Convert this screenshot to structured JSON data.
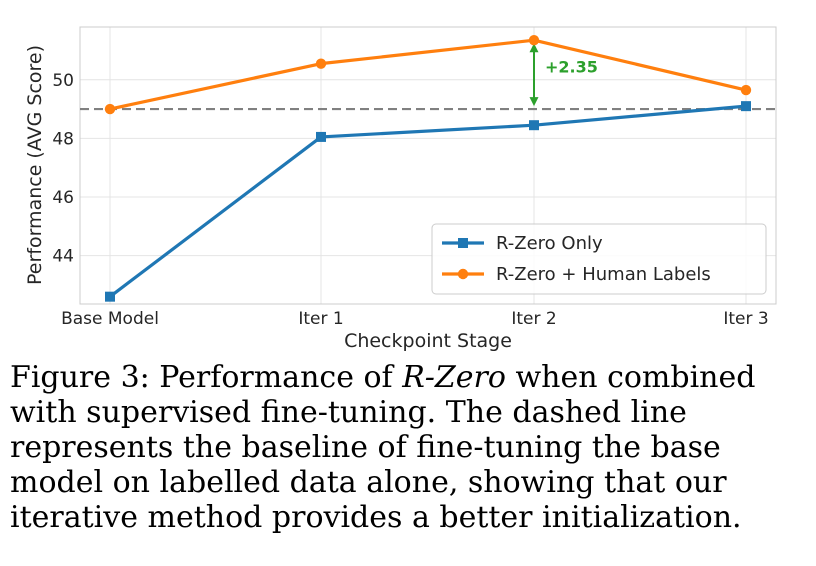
{
  "chart_data": {
    "type": "line",
    "categories": [
      "Base Model",
      "Iter 1",
      "Iter 2",
      "Iter 3"
    ],
    "series": [
      {
        "name": "R-Zero Only",
        "values": [
          42.6,
          48.05,
          48.45,
          49.1
        ],
        "color": "#1f77b4",
        "marker": "square"
      },
      {
        "name": "R-Zero + Human Labels",
        "values": [
          49.0,
          50.55,
          51.35,
          49.65
        ],
        "color": "#ff7f0e",
        "marker": "circle"
      }
    ],
    "baseline": {
      "value": 49.0,
      "style": "dashed",
      "color": "#808080"
    },
    "annotation": {
      "text": "+2.35",
      "category": "Iter 2",
      "from": 49.0,
      "to": 51.35,
      "color": "#2ca02c"
    },
    "xlabel": "Checkpoint Stage",
    "ylabel": "Performance (AVG Score)",
    "yticks": [
      44,
      46,
      48,
      50
    ],
    "ylim": [
      42.35,
      51.8
    ],
    "grid": true,
    "legend": "lower-right"
  },
  "caption": {
    "prefix": "Figure 3: Performance of ",
    "emphasis": "R-Zero",
    "suffix": " when combined with supervised fine-tuning. The dashed line represents the baseline of fine-tuning the base model on labelled data alone, showing that our iterative method provides a better initialization."
  }
}
